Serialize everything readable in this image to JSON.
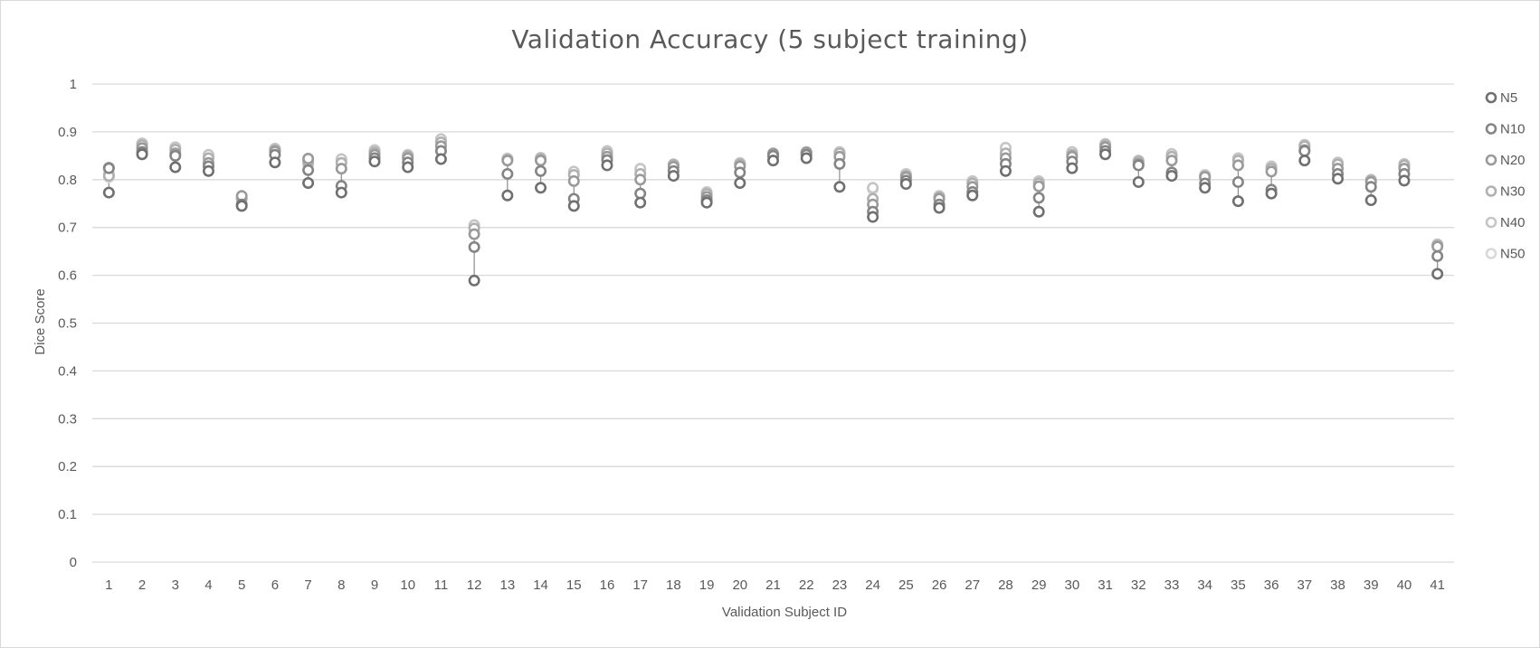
{
  "chart_data": {
    "type": "scatter",
    "title": "Validation Accuracy (5 subject training)",
    "xlabel": "Validation Subject ID",
    "ylabel": "Dice Score",
    "ylim": [
      0,
      1
    ],
    "y_ticks": [
      "0",
      "0.1",
      "0.2",
      "0.3",
      "0.4",
      "0.5",
      "0.6",
      "0.7",
      "0.8",
      "0.9",
      "1"
    ],
    "categories": [
      "1",
      "2",
      "3",
      "4",
      "5",
      "6",
      "7",
      "8",
      "9",
      "10",
      "11",
      "12",
      "13",
      "14",
      "15",
      "16",
      "17",
      "18",
      "19",
      "20",
      "21",
      "22",
      "23",
      "24",
      "25",
      "26",
      "27",
      "28",
      "29",
      "30",
      "31",
      "32",
      "33",
      "34",
      "35",
      "36",
      "37",
      "38",
      "39",
      "40",
      "41"
    ],
    "grid": true,
    "legend_position": "right",
    "colors": {
      "N5": "#707070",
      "N10": "#858585",
      "N20": "#9a9a9a",
      "N30": "#b0b0b0",
      "N40": "#c5c5c5",
      "N50": "#d9d9d9",
      "gridline": "#d9d9d9",
      "text": "#595959"
    },
    "series": [
      {
        "name": "N5",
        "values": [
          0.773,
          0.853,
          0.826,
          0.818,
          0.745,
          0.836,
          0.793,
          0.773,
          0.838,
          0.826,
          0.843,
          0.589,
          0.767,
          0.783,
          0.745,
          0.83,
          0.752,
          0.808,
          0.752,
          0.793,
          0.84,
          0.845,
          0.785,
          0.722,
          0.791,
          0.741,
          0.767,
          0.818,
          0.733,
          0.824,
          0.853,
          0.795,
          0.808,
          0.783,
          0.755,
          0.771,
          0.84,
          0.802,
          0.757,
          0.798,
          0.603
        ]
      },
      {
        "name": "N10",
        "values": [
          0.824,
          0.858,
          0.85,
          0.828,
          0.748,
          0.852,
          0.82,
          0.787,
          0.845,
          0.836,
          0.86,
          0.659,
          0.812,
          0.818,
          0.76,
          0.841,
          0.771,
          0.818,
          0.757,
          0.815,
          0.85,
          0.852,
          0.833,
          0.733,
          0.798,
          0.748,
          0.774,
          0.833,
          0.762,
          0.838,
          0.86,
          0.83,
          0.815,
          0.792,
          0.795,
          0.779,
          0.86,
          0.812,
          0.785,
          0.812,
          0.64
        ]
      },
      {
        "name": "N20",
        "values": [
          0.825,
          0.866,
          0.855,
          0.835,
          0.766,
          0.859,
          0.844,
          0.823,
          0.852,
          0.845,
          0.87,
          0.686,
          0.84,
          0.84,
          0.797,
          0.848,
          0.8,
          0.827,
          0.764,
          0.828,
          0.855,
          0.857,
          0.848,
          0.748,
          0.805,
          0.76,
          0.785,
          0.845,
          0.786,
          0.848,
          0.868,
          0.833,
          0.84,
          0.806,
          0.83,
          0.817,
          0.862,
          0.823,
          0.795,
          0.823,
          0.66
        ]
      },
      {
        "name": "N30",
        "values": [
          0.808,
          0.872,
          0.863,
          0.845,
          0.76,
          0.862,
          0.838,
          0.835,
          0.857,
          0.849,
          0.878,
          0.698,
          0.842,
          0.843,
          0.81,
          0.855,
          0.812,
          0.832,
          0.77,
          0.832,
          0.852,
          0.855,
          0.855,
          0.76,
          0.808,
          0.763,
          0.792,
          0.855,
          0.792,
          0.852,
          0.872,
          0.838,
          0.848,
          0.803,
          0.84,
          0.823,
          0.87,
          0.832,
          0.798,
          0.83,
          0.662
        ]
      },
      {
        "name": "N40",
        "values": [
          0.812,
          0.876,
          0.868,
          0.852,
          0.762,
          0.865,
          0.832,
          0.843,
          0.862,
          0.852,
          0.885,
          0.705,
          0.843,
          0.846,
          0.817,
          0.86,
          0.823,
          0.83,
          0.774,
          0.835,
          0.848,
          0.858,
          0.858,
          0.783,
          0.812,
          0.766,
          0.797,
          0.867,
          0.797,
          0.858,
          0.875,
          0.84,
          0.854,
          0.81,
          0.845,
          0.828,
          0.873,
          0.836,
          0.8,
          0.833,
          0.665
        ]
      },
      {
        "name": "N50",
        "values": [
          0.805,
          0.874,
          0.866,
          0.85,
          0.759,
          0.86,
          0.84,
          0.84,
          0.86,
          0.85,
          0.882,
          0.703,
          0.845,
          0.844,
          0.815,
          0.858,
          0.818,
          0.828,
          0.772,
          0.834,
          0.85,
          0.857,
          0.856,
          0.78,
          0.81,
          0.765,
          0.795,
          0.862,
          0.795,
          0.855,
          0.873,
          0.839,
          0.85,
          0.808,
          0.843,
          0.826,
          0.871,
          0.834,
          0.799,
          0.831,
          0.663
        ]
      }
    ]
  }
}
